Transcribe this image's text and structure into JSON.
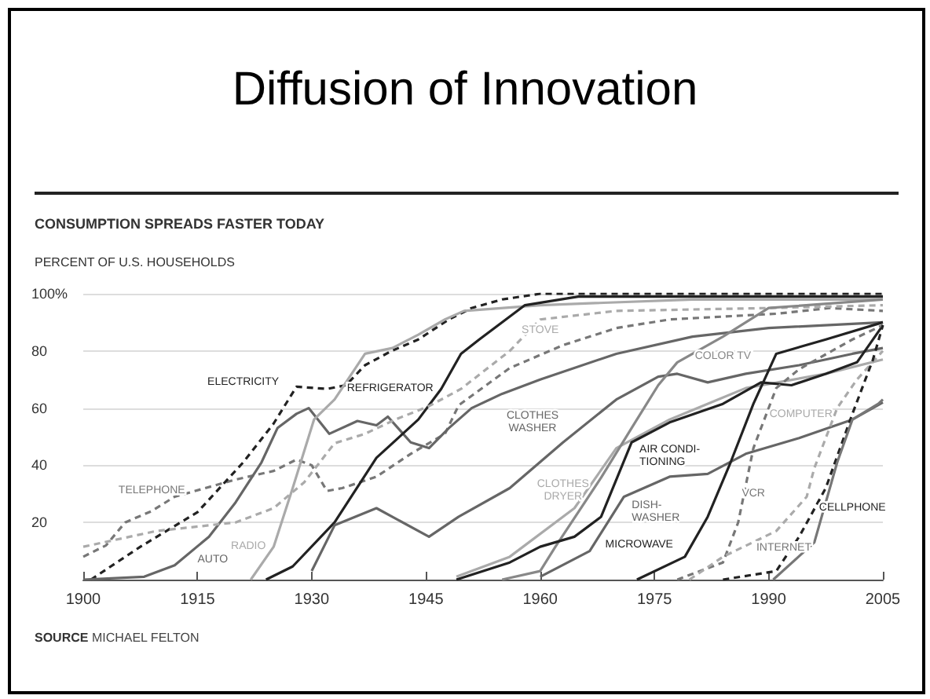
{
  "chart_data": {
    "type": "line",
    "title": "Diffusion of Innovation",
    "subtitle": "CONSUMPTION SPREADS FASTER TODAY",
    "ylabel": "PERCENT OF U.S. HOUSEHOLDS",
    "xlim": [
      1900,
      2005
    ],
    "xticks": [
      1900,
      1915,
      1930,
      1945,
      1960,
      1975,
      1990,
      2005
    ],
    "ylim": [
      0,
      100
    ],
    "yticks": [
      {
        "value": 0,
        "label": null
      },
      20,
      40,
      60,
      80,
      {
        "value": 100,
        "label": "100%"
      }
    ],
    "grid": "y",
    "legend": false,
    "series": [
      {
        "name": "TELEPHONE",
        "color": "#777777",
        "line_style": "dashed",
        "x": [
          1900,
          1903,
          1905.5,
          1909,
          1912,
          1916,
          1920,
          1925,
          1928,
          1930,
          1932,
          1934,
          1938.5,
          1943,
          1947.5,
          1949.3,
          1956,
          1963,
          1970,
          1977,
          1984,
          1991,
          1998,
          2005
        ],
        "values": [
          8,
          12,
          20,
          24,
          29,
          32,
          35,
          38,
          42,
          40,
          31,
          32,
          36,
          44,
          51,
          61,
          74,
          82,
          88,
          91,
          92,
          93,
          95,
          94
        ]
      },
      {
        "name": "ELECTRICITY",
        "color": "#222222",
        "line_style": "dashed",
        "x": [
          1901,
          1907.5,
          1915,
          1921,
          1925,
          1928,
          1932,
          1934.5,
          1937,
          1940.5,
          1944,
          1948,
          1951,
          1955,
          1960,
          2005
        ],
        "values": [
          0,
          11.5,
          23.6,
          41,
          54.6,
          67.5,
          66.7,
          68,
          75,
          80,
          84,
          91,
          95,
          98,
          100,
          100
        ]
      },
      {
        "name": "AUTO",
        "color": "#666666",
        "line_style": "solid",
        "x": [
          1900,
          1908,
          1912,
          1916.5,
          1920,
          1923.4,
          1925.5,
          1928,
          1929.6,
          1932.3,
          1936,
          1938.5,
          1940,
          1943,
          1945.4,
          1948,
          1951,
          1955,
          1960,
          1970,
          1980,
          1990,
          2005
        ],
        "values": [
          0,
          1,
          5,
          15,
          27,
          41,
          53,
          58,
          60,
          51,
          55.5,
          54,
          57,
          48,
          46,
          53,
          60,
          65,
          70,
          79,
          85,
          88,
          90
        ]
      },
      {
        "name": "RADIO",
        "color": "#aaaaaa",
        "line_style": "solid",
        "x": [
          1922,
          1925,
          1927.5,
          1930.3,
          1933,
          1937,
          1940.6,
          1944,
          1947.5,
          1950,
          1960,
          1980,
          2005
        ],
        "values": [
          0,
          11.5,
          32,
          56,
          63,
          79,
          81,
          85.7,
          91,
          94,
          96,
          98,
          98
        ]
      },
      {
        "name": "REFRIGERATOR",
        "color": "#222222",
        "line_style": "solid",
        "x": [
          1924,
          1927.5,
          1933,
          1938.5,
          1944,
          1947,
          1949.6,
          1952,
          1958,
          1965,
          2005
        ],
        "values": [
          0,
          4.6,
          20,
          42.6,
          56,
          66.7,
          79,
          84,
          96,
          99,
          99
        ]
      },
      {
        "name": "STOVE",
        "color": "#aaaaaa",
        "line_style": "dashed",
        "x": [
          1900,
          1909.6,
          1920,
          1925,
          1929,
          1933,
          1937,
          1941,
          1945.4,
          1949.6,
          1956,
          1960,
          1970,
          1990,
          2005
        ],
        "values": [
          11.5,
          17,
          20,
          25,
          34,
          47.7,
          51,
          56,
          60.7,
          66.7,
          80,
          91,
          94,
          95,
          96
        ]
      },
      {
        "name": "CLOTHES\nWASHER",
        "color": "#666666",
        "line_style": "solid",
        "x": [
          1930,
          1933,
          1938.5,
          1945.4,
          1949.3,
          1956,
          1963,
          1970,
          1975.5,
          1978,
          1982,
          1987,
          1994,
          2001,
          2005
        ],
        "values": [
          3,
          19,
          25,
          15,
          22,
          32,
          48,
          63,
          71,
          72,
          69,
          72,
          75,
          79,
          81
        ]
      },
      {
        "name": "CLOTHES\nDRYER",
        "color": "#aaaaaa",
        "line_style": "solid",
        "x": [
          1949,
          1956,
          1964.5,
          1970,
          1977,
          1987,
          1997.5,
          2005
        ],
        "values": [
          1,
          8,
          25,
          46,
          56,
          67,
          72,
          77
        ]
      },
      {
        "name": "COLOR TV",
        "color": "#888888",
        "line_style": "solid",
        "x": [
          1955,
          1960,
          1962,
          1968,
          1972,
          1975.5,
          1978,
          1984,
          1990,
          2005
        ],
        "values": [
          0,
          3,
          11.5,
          35.7,
          53,
          68,
          76,
          85,
          95,
          98
        ]
      },
      {
        "name": "AIR CONDI-\nTIONING",
        "color": "#222222",
        "line_style": "solid",
        "x": [
          1949,
          1956,
          1960,
          1964.5,
          1968,
          1972,
          1977,
          1984,
          1989,
          1993,
          1997.5,
          2001.6,
          2005
        ],
        "values": [
          0,
          6,
          11.5,
          15,
          22,
          48,
          55,
          61.5,
          69,
          68,
          72,
          76,
          89
        ]
      },
      {
        "name": "DISH-\nWASHER",
        "color": "#666666",
        "line_style": "solid",
        "x": [
          1960,
          1966.5,
          1971,
          1977,
          1982,
          1987,
          1994,
          2001,
          2005
        ],
        "values": [
          1,
          10,
          29,
          36,
          37,
          44,
          49.5,
          56,
          62
        ]
      },
      {
        "name": "MICROWAVE",
        "color": "#222222",
        "line_style": "solid",
        "x": [
          1972.7,
          1979,
          1982,
          1985,
          1988,
          1991,
          1997.5,
          2005
        ],
        "values": [
          0,
          8,
          22,
          41,
          61.5,
          79,
          84,
          90
        ]
      },
      {
        "name": "VCR",
        "color": "#777777",
        "line_style": "dashed",
        "x": [
          1978,
          1984,
          1986,
          1988,
          1991,
          1994,
          2001,
          2005
        ],
        "values": [
          0,
          6,
          20,
          46,
          67,
          73.6,
          84,
          89
        ]
      },
      {
        "name": "COMPUTER",
        "color": "#aaaaaa",
        "line_style": "dashed",
        "x": [
          1979.6,
          1984,
          1991,
          1995,
          1996,
          1999,
          2001.6,
          2005
        ],
        "values": [
          0,
          8,
          17,
          29,
          39,
          60,
          70,
          80
        ]
      },
      {
        "name": "CELLPHONE",
        "color": "#222222",
        "line_style": "dashed",
        "x": [
          1984,
          1991,
          1994,
          1997.5,
          2001,
          2003.7,
          2005
        ],
        "values": [
          0,
          3,
          15,
          32,
          58,
          77,
          89
        ]
      },
      {
        "name": "INTERNET",
        "color": "#777777",
        "line_style": "solid",
        "x": [
          1990.6,
          1996,
          1999,
          2001,
          2004.4,
          2005
        ],
        "values": [
          0,
          13,
          41,
          56,
          61.5,
          63
        ]
      }
    ],
    "annotations": [
      "SOURCE MICHAEL FELTON"
    ]
  }
}
